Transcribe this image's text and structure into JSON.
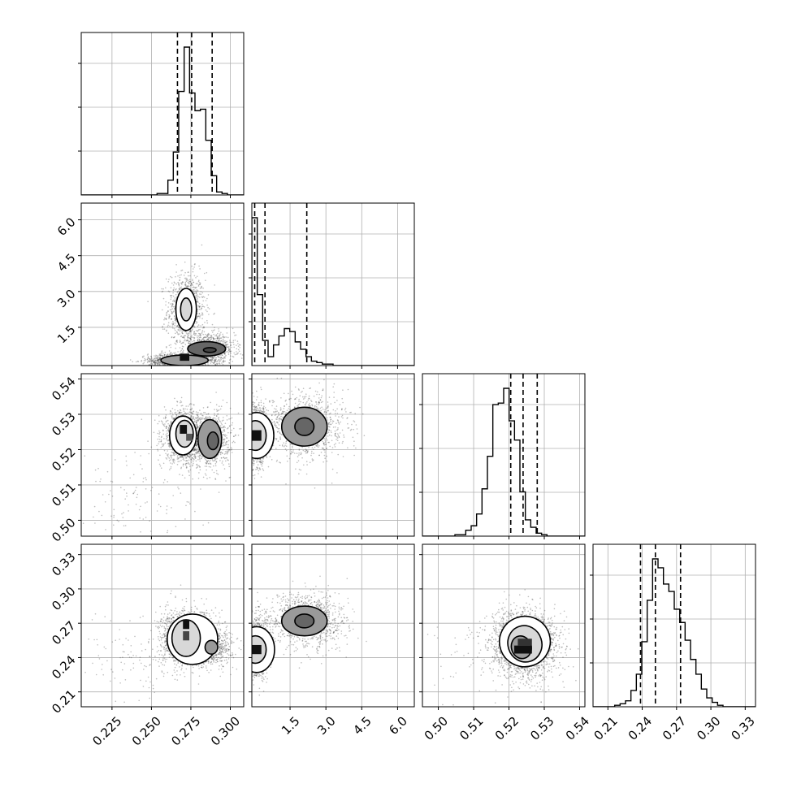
{
  "chart_data": {
    "type": "corner",
    "colors": {
      "ink": "#000000",
      "grid": "#b0b0b0",
      "scatter": "#444444",
      "background": "#ffffff"
    },
    "grid": true,
    "parameters": [
      {
        "range": [
          0.2055,
          0.3085
        ],
        "ticks": [
          0.225,
          0.25,
          0.275,
          0.3
        ],
        "tick_labels": [
          "0.225",
          "0.250",
          "0.275",
          "0.300"
        ],
        "quantiles": [
          0.2665,
          0.2755,
          0.2885
        ],
        "hist": [
          0.0,
          0.0,
          0.0,
          0.0,
          0.0,
          0.0,
          0.0,
          0.0,
          0.0,
          0.0,
          0.0,
          0.0,
          0.0,
          0.0,
          0.01,
          0.01,
          0.1,
          0.29,
          0.7,
          1.0,
          0.69,
          0.57,
          0.58,
          0.37,
          0.13,
          0.02,
          0.01,
          0.0,
          0.0,
          0.0
        ]
      },
      {
        "range": [
          -0.1,
          6.7
        ],
        "ticks": [
          1.5,
          3.0,
          4.5,
          6.0
        ],
        "tick_labels": [
          "1.5",
          "3.0",
          "4.5",
          "6.0"
        ],
        "quantiles": [
          0.02,
          0.45,
          2.2
        ],
        "hist": [
          1.0,
          0.48,
          0.17,
          0.06,
          0.14,
          0.2,
          0.25,
          0.23,
          0.16,
          0.11,
          0.06,
          0.03,
          0.02,
          0.01,
          0.01,
          0.0,
          0.0,
          0.0,
          0.0,
          0.0,
          0.0,
          0.0,
          0.0,
          0.0,
          0.0,
          0.0,
          0.0,
          0.0,
          0.0,
          0.0
        ]
      },
      {
        "range": [
          0.4955,
          0.5415
        ],
        "ticks": [
          0.5,
          0.51,
          0.52,
          0.53,
          0.54
        ],
        "tick_labels": [
          "0.50",
          "0.51",
          "0.52",
          "0.53",
          "0.54"
        ],
        "quantiles": [
          0.5205,
          0.524,
          0.528
        ],
        "hist": [
          0.0,
          0.0,
          0.0,
          0.0,
          0.0,
          0.0,
          0.01,
          0.01,
          0.04,
          0.07,
          0.15,
          0.32,
          0.54,
          0.89,
          0.9,
          1.0,
          0.78,
          0.65,
          0.3,
          0.11,
          0.06,
          0.02,
          0.01,
          0.0,
          0.0,
          0.0,
          0.0,
          0.0,
          0.0,
          0.0
        ]
      },
      {
        "range": [
          0.197,
          0.339
        ],
        "ticks": [
          0.21,
          0.24,
          0.27,
          0.3,
          0.33
        ],
        "tick_labels": [
          "0.21",
          "0.24",
          "0.27",
          "0.30",
          "0.33"
        ],
        "quantiles": [
          0.2385,
          0.2515,
          0.2735
        ],
        "hist": [
          0.0,
          0.0,
          0.0,
          0.0,
          0.01,
          0.02,
          0.04,
          0.11,
          0.22,
          0.44,
          0.72,
          1.0,
          0.94,
          0.83,
          0.78,
          0.66,
          0.57,
          0.45,
          0.32,
          0.22,
          0.12,
          0.06,
          0.03,
          0.01,
          0.0,
          0.0,
          0.0,
          0.0,
          0.0,
          0.0
        ]
      }
    ],
    "pairs": [
      {
        "row": 1,
        "col": 0,
        "clusters": [
          {
            "mx": 0.272,
            "my": 2.2,
            "sx": 0.006,
            "sy": 0.8,
            "n": 900
          },
          {
            "mx": 0.268,
            "my": 0.1,
            "sx": 0.01,
            "sy": 0.15,
            "n": 1200
          },
          {
            "mx": 0.287,
            "my": 0.6,
            "sx": 0.008,
            "sy": 0.3,
            "n": 900
          }
        ],
        "contours": [
          {
            "cx": 0.272,
            "cy": 2.25,
            "rx": 0.0065,
            "ry": 0.88
          },
          {
            "cx": 0.272,
            "cy": 2.25,
            "rx": 0.0035,
            "ry": 0.48
          },
          {
            "cx": 0.271,
            "cy": 0.12,
            "rx": 0.015,
            "ry": 0.22
          },
          {
            "cx": 0.285,
            "cy": 0.6,
            "rx": 0.012,
            "ry": 0.3
          },
          {
            "cx": 0.287,
            "cy": 0.55,
            "rx": 0.004,
            "ry": 0.1
          }
        ],
        "dark_cells": [
          {
            "x": 0.268,
            "y": 0.1,
            "w": 0.006,
            "h": 0.3,
            "shade": "#111111"
          }
        ]
      },
      {
        "row": 2,
        "col": 0,
        "clusters": [
          {
            "mx": 0.27,
            "my": 0.524,
            "sx": 0.006,
            "sy": 0.0035,
            "n": 1300
          },
          {
            "mx": 0.286,
            "my": 0.523,
            "sx": 0.007,
            "sy": 0.004,
            "n": 1000
          },
          {
            "mx": 0.24,
            "my": 0.508,
            "sx": 0.02,
            "sy": 0.007,
            "n": 120
          }
        ],
        "contours": [
          {
            "cx": 0.27,
            "cy": 0.524,
            "rx": 0.0085,
            "ry": 0.0055
          },
          {
            "cx": 0.271,
            "cy": 0.5245,
            "rx": 0.0055,
            "ry": 0.0038
          },
          {
            "cx": 0.287,
            "cy": 0.523,
            "rx": 0.0075,
            "ry": 0.0055
          },
          {
            "cx": 0.289,
            "cy": 0.5225,
            "rx": 0.0035,
            "ry": 0.0025
          }
        ],
        "dark_cells": [
          {
            "x": 0.268,
            "y": 0.5245,
            "w": 0.0045,
            "h": 0.0025,
            "shade": "#111111"
          },
          {
            "x": 0.272,
            "y": 0.5225,
            "w": 0.004,
            "h": 0.002,
            "shade": "#555555"
          }
        ]
      },
      {
        "row": 3,
        "col": 0,
        "clusters": [
          {
            "mx": 0.272,
            "my": 0.258,
            "sx": 0.008,
            "sy": 0.012,
            "n": 1500
          },
          {
            "mx": 0.287,
            "my": 0.25,
            "sx": 0.007,
            "sy": 0.008,
            "n": 800
          },
          {
            "mx": 0.24,
            "my": 0.24,
            "sx": 0.02,
            "sy": 0.02,
            "n": 120
          }
        ],
        "contours": [
          {
            "cx": 0.276,
            "cy": 0.256,
            "rx": 0.016,
            "ry": 0.022
          },
          {
            "cx": 0.272,
            "cy": 0.257,
            "rx": 0.009,
            "ry": 0.016
          },
          {
            "cx": 0.288,
            "cy": 0.249,
            "rx": 0.004,
            "ry": 0.006
          }
        ],
        "dark_cells": [
          {
            "x": 0.27,
            "y": 0.265,
            "w": 0.004,
            "h": 0.008,
            "shade": "#111111"
          },
          {
            "x": 0.27,
            "y": 0.255,
            "w": 0.004,
            "h": 0.008,
            "shade": "#444444"
          }
        ]
      },
      {
        "row": 2,
        "col": 1,
        "clusters": [
          {
            "mx": 0.1,
            "my": 0.524,
            "sx": 0.25,
            "sy": 0.004,
            "n": 1300
          },
          {
            "mx": 2.2,
            "my": 0.527,
            "sx": 0.8,
            "sy": 0.0045,
            "n": 1100
          }
        ],
        "contours": [
          {
            "cx": 0.1,
            "cy": 0.524,
            "rx": 0.72,
            "ry": 0.0065
          },
          {
            "cx": 0.05,
            "cy": 0.524,
            "rx": 0.45,
            "ry": 0.0042
          },
          {
            "cx": 2.1,
            "cy": 0.5265,
            "rx": 0.95,
            "ry": 0.0055
          },
          {
            "cx": 2.1,
            "cy": 0.5265,
            "rx": 0.4,
            "ry": 0.0025
          }
        ],
        "dark_cells": [
          {
            "x": -0.1,
            "y": 0.5225,
            "w": 0.4,
            "h": 0.003,
            "shade": "#111111"
          }
        ]
      },
      {
        "row": 3,
        "col": 1,
        "clusters": [
          {
            "mx": 0.1,
            "my": 0.248,
            "sx": 0.25,
            "sy": 0.012,
            "n": 1300
          },
          {
            "mx": 2.2,
            "my": 0.272,
            "sx": 0.8,
            "sy": 0.012,
            "n": 1100
          }
        ],
        "contours": [
          {
            "cx": 0.1,
            "cy": 0.247,
            "rx": 0.75,
            "ry": 0.02
          },
          {
            "cx": 0.05,
            "cy": 0.247,
            "rx": 0.45,
            "ry": 0.012
          },
          {
            "cx": 2.1,
            "cy": 0.272,
            "rx": 0.95,
            "ry": 0.013
          },
          {
            "cx": 2.1,
            "cy": 0.272,
            "rx": 0.4,
            "ry": 0.006
          }
        ],
        "dark_cells": [
          {
            "x": -0.1,
            "y": 0.243,
            "w": 0.4,
            "h": 0.008,
            "shade": "#111111"
          }
        ]
      },
      {
        "row": 3,
        "col": 2,
        "clusters": [
          {
            "mx": 0.5245,
            "my": 0.252,
            "sx": 0.0045,
            "sy": 0.014,
            "n": 2300
          },
          {
            "mx": 0.515,
            "my": 0.24,
            "sx": 0.01,
            "sy": 0.02,
            "n": 100
          }
        ],
        "contours": [
          {
            "cx": 0.5245,
            "cy": 0.254,
            "rx": 0.0072,
            "ry": 0.022,
            "rot": -18
          },
          {
            "cx": 0.5245,
            "cy": 0.252,
            "rx": 0.0048,
            "ry": 0.016,
            "rot": -18
          },
          {
            "cx": 0.5235,
            "cy": 0.249,
            "rx": 0.0028,
            "ry": 0.01,
            "rot": -18
          }
        ],
        "dark_cells": [
          {
            "x": 0.5215,
            "y": 0.2435,
            "w": 0.005,
            "h": 0.007,
            "shade": "#111111"
          },
          {
            "x": 0.5225,
            "y": 0.2505,
            "w": 0.004,
            "h": 0.006,
            "shade": "#333333"
          }
        ]
      }
    ]
  }
}
